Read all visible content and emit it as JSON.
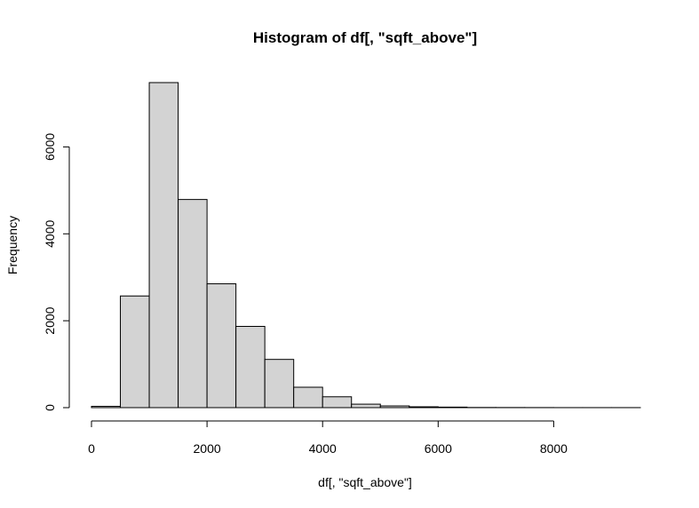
{
  "chart_data": {
    "type": "bar",
    "title": "Histogram of df[, \"sqft_above\"]",
    "xlabel": "df[, \"sqft_above\"]",
    "ylabel": "Frequency",
    "bin_width": 500,
    "bins": [
      {
        "x0": 0,
        "x1": 500,
        "count": 30
      },
      {
        "x0": 500,
        "x1": 1000,
        "count": 2570
      },
      {
        "x0": 1000,
        "x1": 1500,
        "count": 7480
      },
      {
        "x0": 1500,
        "x1": 2000,
        "count": 4790
      },
      {
        "x0": 2000,
        "x1": 2500,
        "count": 2850
      },
      {
        "x0": 2500,
        "x1": 3000,
        "count": 1870
      },
      {
        "x0": 3000,
        "x1": 3500,
        "count": 1110
      },
      {
        "x0": 3500,
        "x1": 4000,
        "count": 470
      },
      {
        "x0": 4000,
        "x1": 4500,
        "count": 250
      },
      {
        "x0": 4500,
        "x1": 5000,
        "count": 80
      },
      {
        "x0": 5000,
        "x1": 5500,
        "count": 40
      },
      {
        "x0": 5500,
        "x1": 6000,
        "count": 20
      },
      {
        "x0": 6000,
        "x1": 6500,
        "count": 12
      },
      {
        "x0": 6500,
        "x1": 7000,
        "count": 4
      },
      {
        "x0": 7000,
        "x1": 7500,
        "count": 3
      },
      {
        "x0": 7500,
        "x1": 8000,
        "count": 2
      },
      {
        "x0": 8000,
        "x1": 8500,
        "count": 1
      },
      {
        "x0": 8500,
        "x1": 9000,
        "count": 1
      },
      {
        "x0": 9000,
        "x1": 9500,
        "count": 1
      }
    ],
    "x_ticks": [
      0,
      2000,
      4000,
      6000,
      8000
    ],
    "y_ticks": [
      0,
      2000,
      4000,
      6000
    ],
    "xlim": [
      0,
      9500
    ],
    "ylim": [
      0,
      7480
    ],
    "grid": false,
    "legend": "none",
    "bar_fill": "#d3d3d3",
    "bar_stroke": "#000000"
  }
}
